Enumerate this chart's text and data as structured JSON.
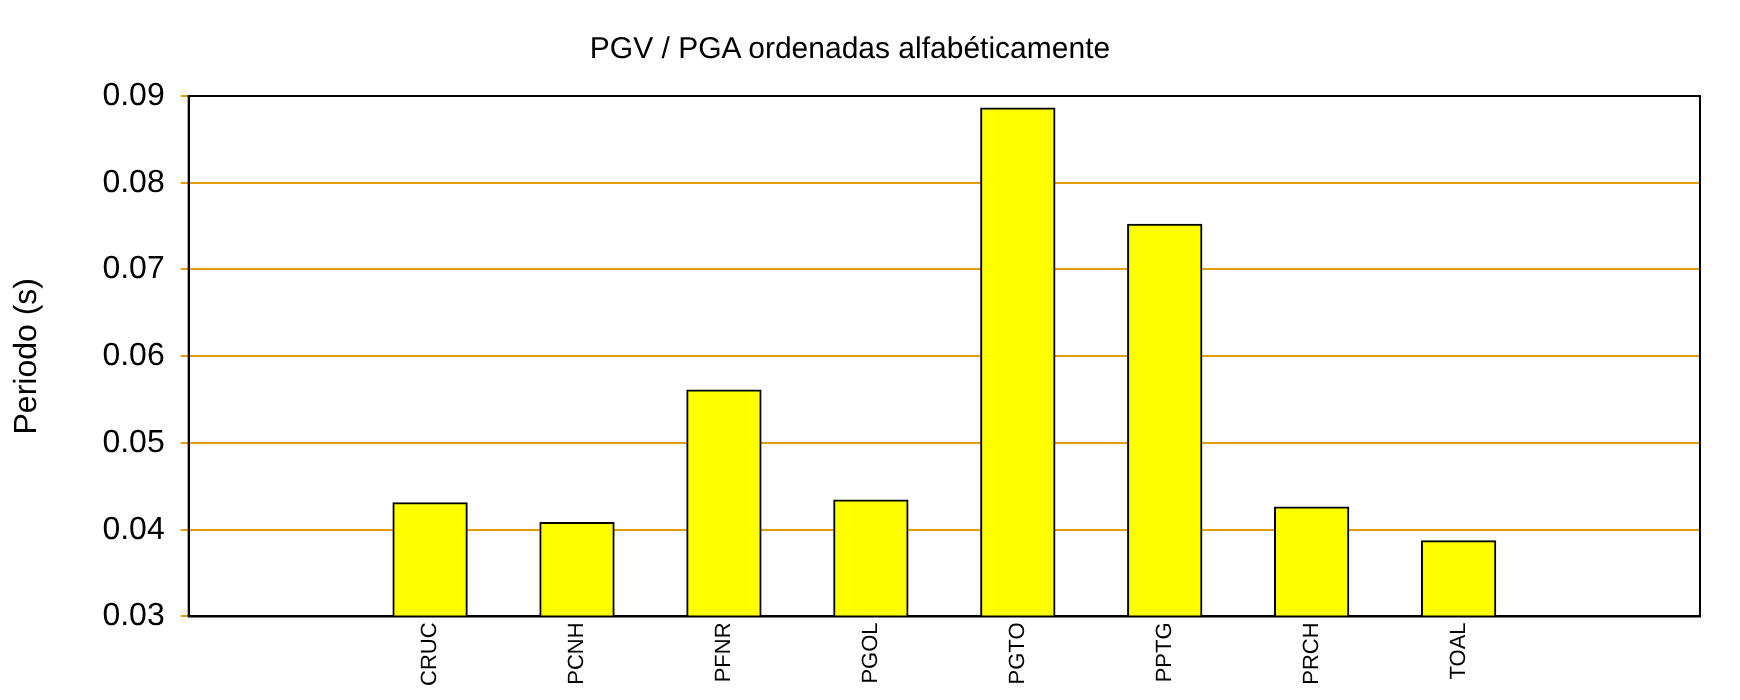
{
  "chart_data": {
    "type": "bar",
    "title": "PGV / PGA ordenadas alfabéticamente",
    "ylabel": "Periodo (s)",
    "categories": [
      "CRUC",
      "PCNH",
      "PFNR",
      "PGOL",
      "PGTO",
      "PPTG",
      "PRCH",
      "TOAL"
    ],
    "values": [
      0.0431,
      0.0408,
      0.0561,
      0.0434,
      0.0886,
      0.0752,
      0.0426,
      0.0387
    ],
    "color": "#ffff00",
    "ylim": [
      0.03,
      0.09
    ],
    "yticks": [
      0.03,
      0.04,
      0.05,
      0.06,
      0.07,
      0.08,
      0.09
    ],
    "grid": "y",
    "legend": false
  }
}
